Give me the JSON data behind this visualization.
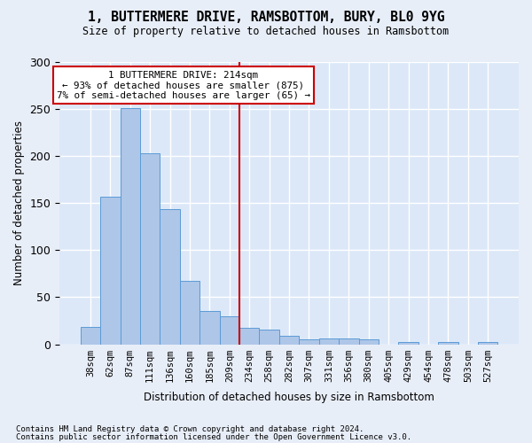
{
  "title": "1, BUTTERMERE DRIVE, RAMSBOTTOM, BURY, BL0 9YG",
  "subtitle": "Size of property relative to detached houses in Ramsbottom",
  "xlabel": "Distribution of detached houses by size in Ramsbottom",
  "ylabel": "Number of detached properties",
  "bar_values": [
    18,
    157,
    251,
    203,
    144,
    67,
    35,
    30,
    17,
    16,
    9,
    5,
    6,
    6,
    5,
    0,
    2,
    0,
    2,
    0,
    2
  ],
  "bar_labels": [
    "38sqm",
    "62sqm",
    "87sqm",
    "111sqm",
    "136sqm",
    "160sqm",
    "185sqm",
    "209sqm",
    "234sqm",
    "258sqm",
    "282sqm",
    "307sqm",
    "331sqm",
    "356sqm",
    "380sqm",
    "405sqm",
    "429sqm",
    "454sqm",
    "478sqm",
    "503sqm",
    "527sqm"
  ],
  "bar_color": "#aec6e8",
  "bar_edge_color": "#5b9bd5",
  "background_color": "#dce8f8",
  "grid_color": "#ffffff",
  "vline_color": "#cc0000",
  "annotation_text": "1 BUTTERMERE DRIVE: 214sqm\n← 93% of detached houses are smaller (875)\n7% of semi-detached houses are larger (65) →",
  "annotation_box_color": "#ffffff",
  "annotation_box_edge": "#cc0000",
  "footnote1": "Contains HM Land Registry data © Crown copyright and database right 2024.",
  "footnote2": "Contains public sector information licensed under the Open Government Licence v3.0.",
  "ylim": [
    0,
    300
  ],
  "yticks": [
    0,
    50,
    100,
    150,
    200,
    250,
    300
  ],
  "fig_facecolor": "#e8eef8"
}
